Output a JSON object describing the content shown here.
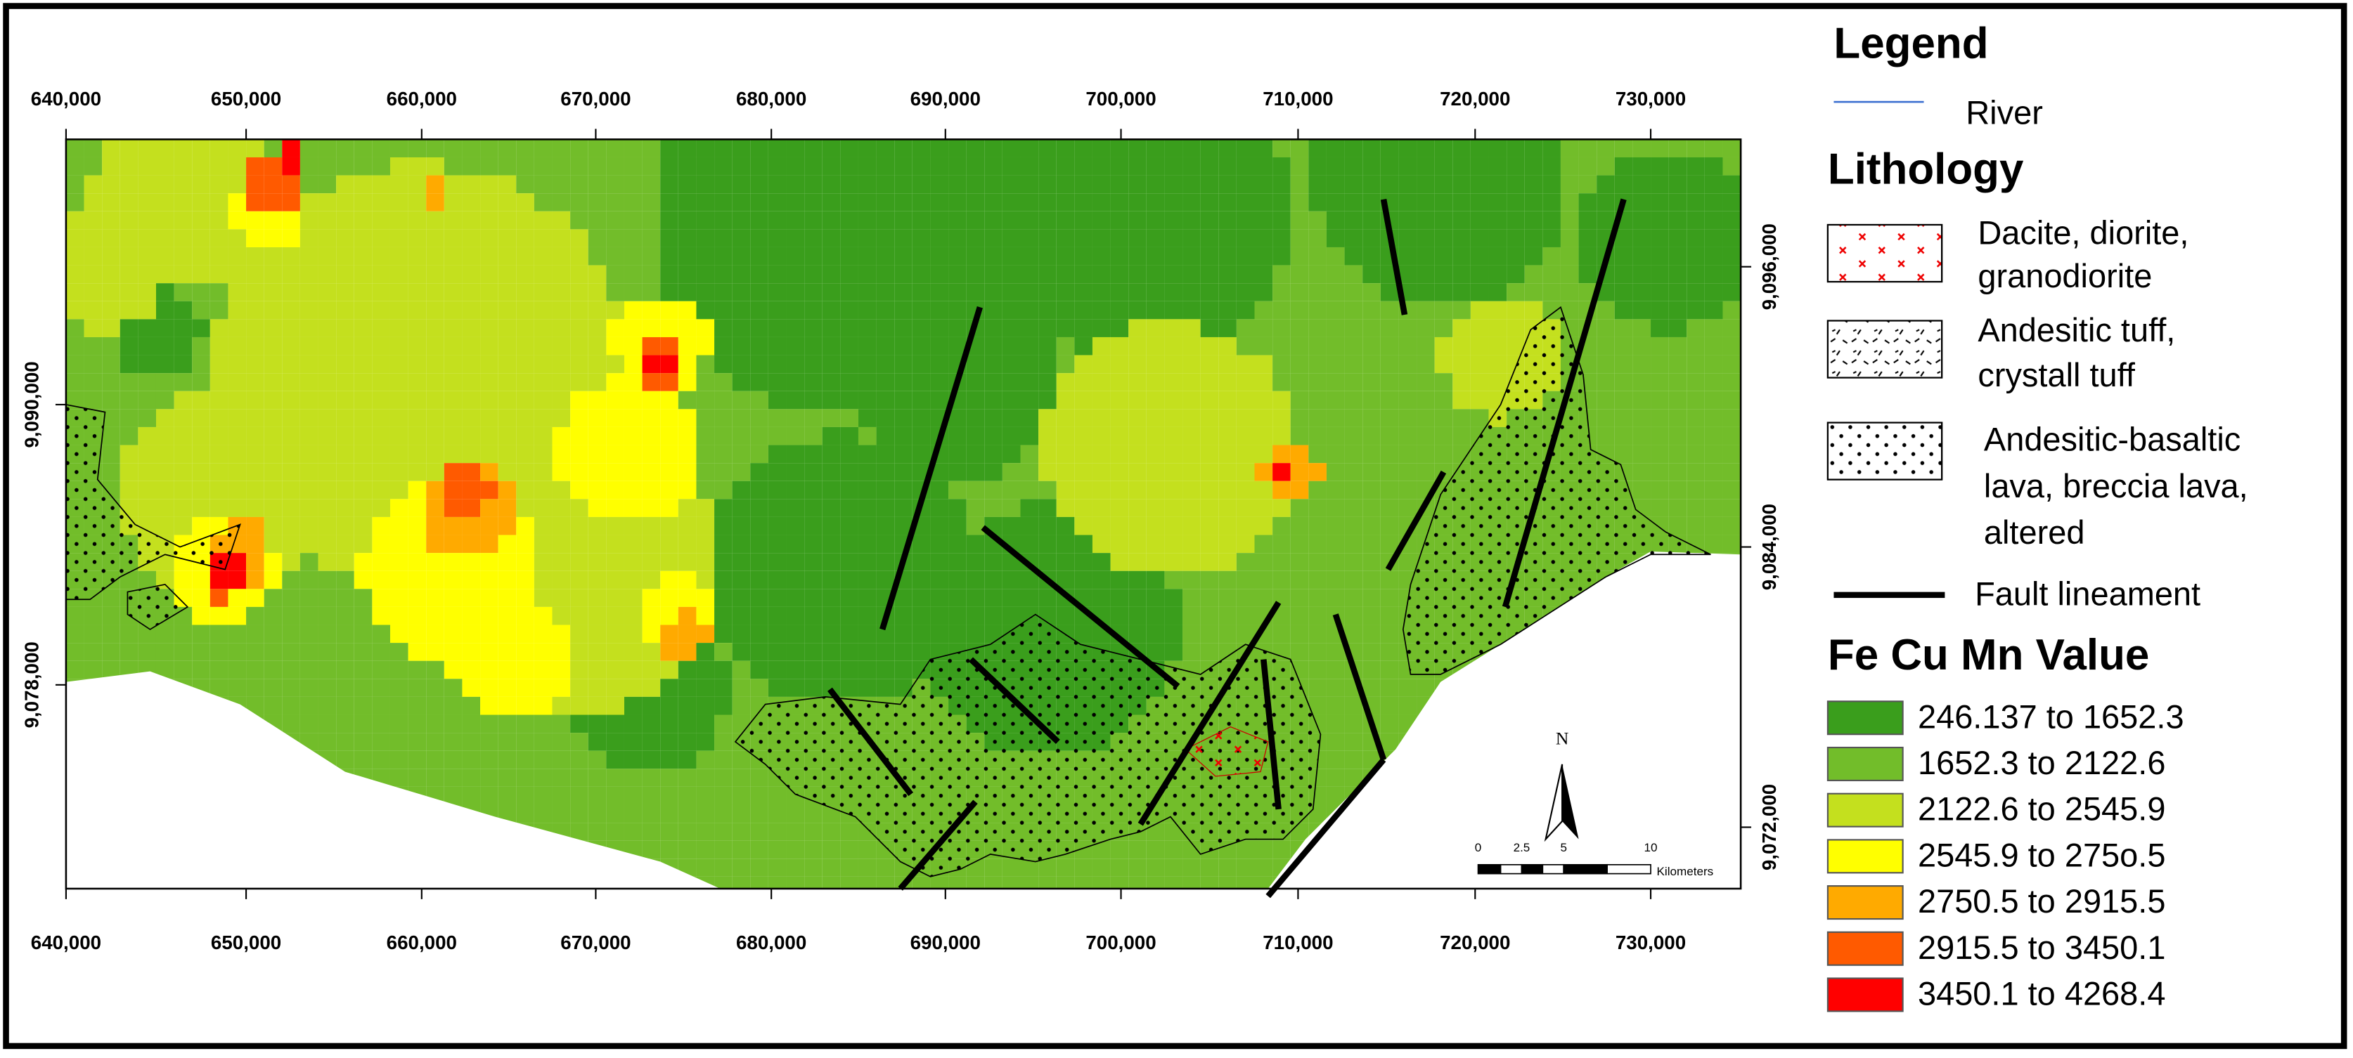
{
  "legend": {
    "title": "Legend",
    "river": "River",
    "lithology_title": "Lithology",
    "lithology": [
      {
        "lines": [
          "Dacite, diorite,",
          "granodiorite"
        ]
      },
      {
        "lines": [
          "Andesitic tuff,",
          "crystall tuff"
        ]
      },
      {
        "lines": [
          "Andesitic-basaltic",
          "lava, breccia lava,",
          "altered"
        ]
      }
    ],
    "fault": "Fault lineament",
    "value_title": "Fe Cu Mn Value",
    "classes": [
      {
        "label": "246.137 to 1652.3",
        "color": "#3a9e1c"
      },
      {
        "label": "1652.3 to 2122.6",
        "color": "#72bd2a"
      },
      {
        "label": "2122.6 to 2545.9",
        "color": "#c4e01e"
      },
      {
        "label": "2545.9 to 275o.5",
        "color": "#ffff00"
      },
      {
        "label": "2750.5 to 2915.5",
        "color": "#ffaa00"
      },
      {
        "label": "2915.5 to 3450.1",
        "color": "#ff5a00"
      },
      {
        "label": "3450.1 to 4268.4",
        "color": "#ff0000"
      }
    ]
  },
  "axes": {
    "x_labels": [
      "640,000",
      "650,000",
      "660,000",
      "670,000",
      "680,000",
      "690,000",
      "700,000",
      "710,000",
      "720,000",
      "730,000"
    ],
    "y_left_labels": [
      "9,090,000",
      "9,078,000"
    ],
    "y_right_labels": [
      "9,096,000",
      "9,084,000",
      "9,072,000"
    ]
  },
  "scale_bar": {
    "labels": [
      "0",
      "2.5",
      "5",
      "10"
    ],
    "unit": "Kilometers"
  },
  "north": "N"
}
